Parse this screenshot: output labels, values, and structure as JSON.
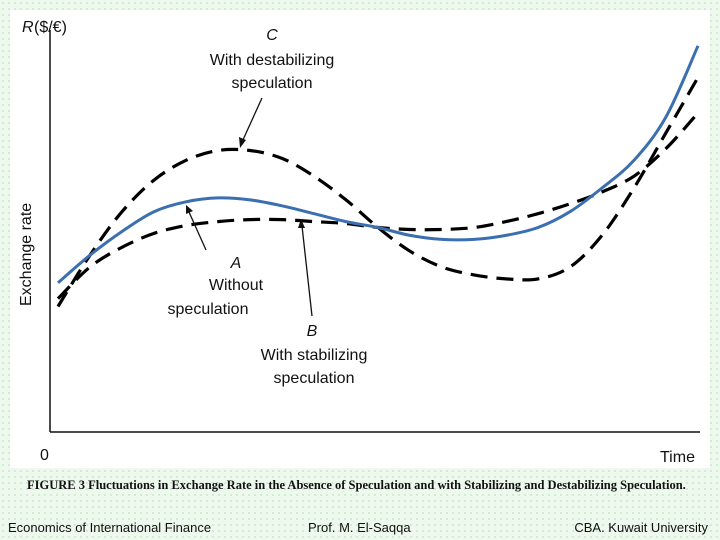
{
  "chart_data": {
    "type": "line",
    "ylabel_symbol": "R",
    "ylabel_unit": "($/€)",
    "ylabel": "Exchange rate",
    "xlabel": "Time",
    "origin_label": "0",
    "series": [
      {
        "key": "C",
        "label_lines": [
          "C",
          "With destabilizing",
          "speculation"
        ],
        "style": "dashed",
        "color": "#000000",
        "x": [
          0,
          0.05,
          0.1,
          0.15,
          0.2,
          0.25,
          0.3,
          0.35,
          0.4,
          0.45,
          0.5,
          0.55,
          0.6,
          0.65,
          0.7,
          0.75,
          0.8,
          0.85,
          0.9,
          0.95,
          1.0
        ],
        "y": [
          0.3,
          0.43,
          0.54,
          0.62,
          0.67,
          0.695,
          0.695,
          0.675,
          0.63,
          0.57,
          0.5,
          0.44,
          0.4,
          0.38,
          0.37,
          0.37,
          0.4,
          0.48,
          0.6,
          0.74,
          0.88
        ]
      },
      {
        "key": "A",
        "label_lines": [
          "A",
          "Without",
          "speculation"
        ],
        "style": "solid",
        "color": "#3b6fb0",
        "x": [
          0,
          0.05,
          0.1,
          0.15,
          0.2,
          0.25,
          0.3,
          0.35,
          0.4,
          0.45,
          0.5,
          0.55,
          0.6,
          0.65,
          0.7,
          0.75,
          0.8,
          0.85,
          0.9,
          0.95,
          1.0
        ],
        "y": [
          0.36,
          0.43,
          0.49,
          0.54,
          0.565,
          0.575,
          0.57,
          0.555,
          0.535,
          0.515,
          0.5,
          0.48,
          0.47,
          0.47,
          0.48,
          0.5,
          0.54,
          0.6,
          0.67,
          0.78,
          0.96
        ]
      },
      {
        "key": "B",
        "label_lines": [
          "B",
          "With stabilizing",
          "speculation"
        ],
        "style": "dashed",
        "color": "#000000",
        "x": [
          0,
          0.05,
          0.1,
          0.15,
          0.2,
          0.25,
          0.3,
          0.35,
          0.4,
          0.45,
          0.5,
          0.55,
          0.6,
          0.65,
          0.7,
          0.75,
          0.8,
          0.85,
          0.9,
          0.95,
          1.0
        ],
        "y": [
          0.32,
          0.4,
          0.45,
          0.485,
          0.505,
          0.515,
          0.52,
          0.52,
          0.515,
          0.51,
          0.5,
          0.495,
          0.495,
          0.5,
          0.515,
          0.535,
          0.56,
          0.59,
          0.63,
          0.7,
          0.79
        ]
      }
    ],
    "grid": false,
    "legend": "none",
    "xlim": [
      0,
      1
    ],
    "ylim": [
      0,
      1
    ]
  },
  "caption": "FIGURE 3 Fluctuations in Exchange Rate in the Absence of Speculation and with Stabilizing and Destabilizing Speculation.",
  "footer": {
    "left": "Economics of International Finance",
    "middle": "Prof. M. El-Saqqa",
    "right": "CBA. Kuwait University"
  },
  "colors": {
    "slide_background": "#eef9ee",
    "figure_background": "#ffffff",
    "curve_A": "#3b6fb0",
    "curve_dashed": "#000000"
  }
}
